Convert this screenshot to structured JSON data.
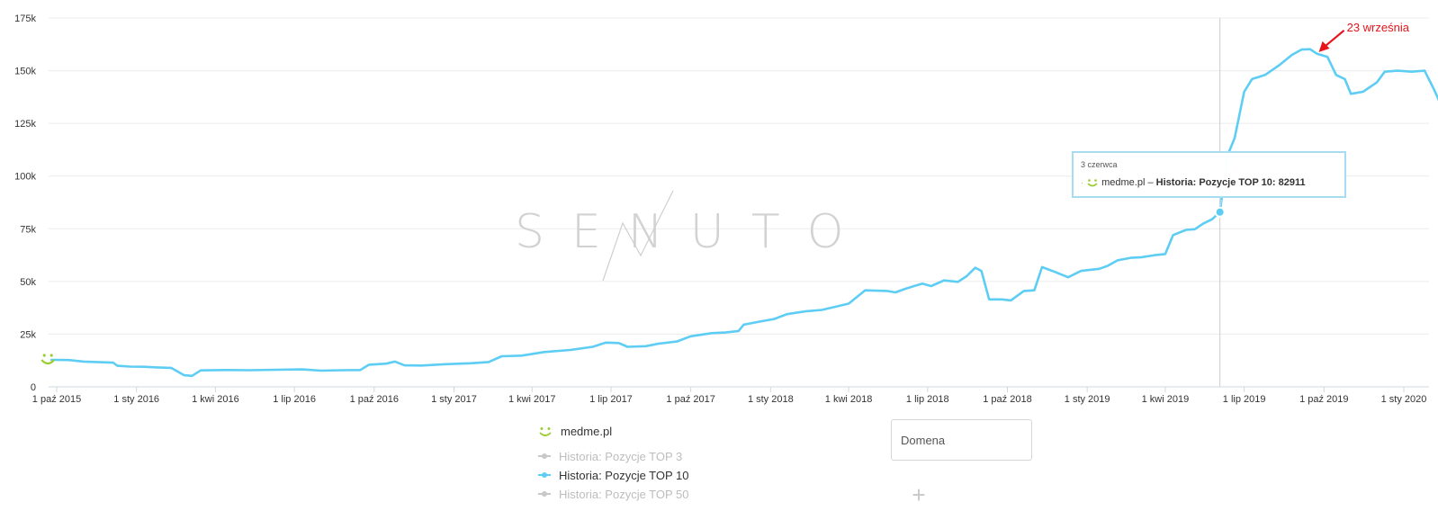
{
  "chart_data": {
    "type": "line",
    "title": "",
    "xlabel": "",
    "ylabel": "",
    "ylim": [
      0,
      175000
    ],
    "y_ticks": [
      0,
      25000,
      50000,
      75000,
      100000,
      125000,
      150000,
      175000
    ],
    "y_tick_labels": [
      "0",
      "25k",
      "50k",
      "75k",
      "100k",
      "125k",
      "150k",
      "175k"
    ],
    "x_tick_dates": [
      "2015-10-01",
      "2016-01-01",
      "2016-04-01",
      "2016-07-01",
      "2016-10-01",
      "2017-01-01",
      "2017-04-01",
      "2017-07-01",
      "2017-10-01",
      "2018-01-01",
      "2018-04-01",
      "2018-07-01",
      "2018-10-01",
      "2019-01-01",
      "2019-04-01",
      "2019-07-01",
      "2019-10-01",
      "2020-01-01"
    ],
    "x_tick_labels": [
      "1 paź 2015",
      "1 sty 2016",
      "1 kwi 2016",
      "1 lip 2016",
      "1 paź 2016",
      "1 sty 2017",
      "1 kwi 2017",
      "1 lip 2017",
      "1 paź 2017",
      "1 sty 2018",
      "1 kwi 2018",
      "1 lip 2018",
      "1 paź 2018",
      "1 sty 2019",
      "1 kwi 2019",
      "1 lip 2019",
      "1 paź 2019",
      "1 sty 2020"
    ],
    "grid": true,
    "legend_position": "bottom",
    "series": [
      {
        "name": "Historia: Pozycje TOP 10",
        "color": "#5ecdf4",
        "points": [
          [
            "2015-09-25",
            12800
          ],
          [
            "2015-10-15",
            12700
          ],
          [
            "2015-11-01",
            12000
          ],
          [
            "2015-11-20",
            11700
          ],
          [
            "2015-12-05",
            11500
          ],
          [
            "2015-12-10",
            10000
          ],
          [
            "2015-12-25",
            9600
          ],
          [
            "2016-01-10",
            9500
          ],
          [
            "2016-01-25",
            9200
          ],
          [
            "2016-02-10",
            9000
          ],
          [
            "2016-02-25",
            5500
          ],
          [
            "2016-03-05",
            5200
          ],
          [
            "2016-03-15",
            7800
          ],
          [
            "2016-04-10",
            8000
          ],
          [
            "2016-05-10",
            7900
          ],
          [
            "2016-06-10",
            8100
          ],
          [
            "2016-07-10",
            8300
          ],
          [
            "2016-08-01",
            7700
          ],
          [
            "2016-08-25",
            7900
          ],
          [
            "2016-09-15",
            8000
          ],
          [
            "2016-09-25",
            10500
          ],
          [
            "2016-10-15",
            11000
          ],
          [
            "2016-10-25",
            12000
          ],
          [
            "2016-11-05",
            10200
          ],
          [
            "2016-11-25",
            10100
          ],
          [
            "2016-12-20",
            10700
          ],
          [
            "2017-01-20",
            11200
          ],
          [
            "2017-02-10",
            11800
          ],
          [
            "2017-02-25",
            14500
          ],
          [
            "2017-03-20",
            14800
          ],
          [
            "2017-04-15",
            16500
          ],
          [
            "2017-05-15",
            17500
          ],
          [
            "2017-06-10",
            19000
          ],
          [
            "2017-06-25",
            21000
          ],
          [
            "2017-07-10",
            20800
          ],
          [
            "2017-07-20",
            19000
          ],
          [
            "2017-08-10",
            19300
          ],
          [
            "2017-08-25",
            20500
          ],
          [
            "2017-09-15",
            21500
          ],
          [
            "2017-10-01",
            24000
          ],
          [
            "2017-10-25",
            25500
          ],
          [
            "2017-11-10",
            25800
          ],
          [
            "2017-11-25",
            26500
          ],
          [
            "2017-12-01",
            29500
          ],
          [
            "2017-12-20",
            31000
          ],
          [
            "2018-01-05",
            32200
          ],
          [
            "2018-01-20",
            34500
          ],
          [
            "2018-02-10",
            35800
          ],
          [
            "2018-03-01",
            36500
          ],
          [
            "2018-03-15",
            37800
          ],
          [
            "2018-04-01",
            39500
          ],
          [
            "2018-04-20",
            45800
          ],
          [
            "2018-05-15",
            45500
          ],
          [
            "2018-05-25",
            44800
          ],
          [
            "2018-06-05",
            46500
          ],
          [
            "2018-06-25",
            49000
          ],
          [
            "2018-07-05",
            47800
          ],
          [
            "2018-07-20",
            50500
          ],
          [
            "2018-08-05",
            49800
          ],
          [
            "2018-08-15",
            52500
          ],
          [
            "2018-08-25",
            56500
          ],
          [
            "2018-09-01",
            55000
          ],
          [
            "2018-09-10",
            41500
          ],
          [
            "2018-09-25",
            41500
          ],
          [
            "2018-10-05",
            41000
          ],
          [
            "2018-10-20",
            45500
          ],
          [
            "2018-11-01",
            45800
          ],
          [
            "2018-11-10",
            56800
          ],
          [
            "2018-11-25",
            54500
          ],
          [
            "2018-12-10",
            52000
          ],
          [
            "2018-12-25",
            55000
          ],
          [
            "2019-01-15",
            56000
          ],
          [
            "2019-01-25",
            57500
          ],
          [
            "2019-02-05",
            60000
          ],
          [
            "2019-02-20",
            61200
          ],
          [
            "2019-03-05",
            61500
          ],
          [
            "2019-03-20",
            62500
          ],
          [
            "2019-04-01",
            63000
          ],
          [
            "2019-04-10",
            72000
          ],
          [
            "2019-04-25",
            74500
          ],
          [
            "2019-05-05",
            74800
          ],
          [
            "2019-05-15",
            77500
          ],
          [
            "2019-05-25",
            79500
          ],
          [
            "2019-06-03",
            82911
          ],
          [
            "2019-06-12",
            110000
          ],
          [
            "2019-06-20",
            118000
          ],
          [
            "2019-07-01",
            140000
          ],
          [
            "2019-07-10",
            146000
          ],
          [
            "2019-07-25",
            148000
          ],
          [
            "2019-08-10",
            152500
          ],
          [
            "2019-08-25",
            157500
          ],
          [
            "2019-09-05",
            160000
          ],
          [
            "2019-09-15",
            160200
          ],
          [
            "2019-09-23",
            158000
          ],
          [
            "2019-10-05",
            156500
          ],
          [
            "2019-10-15",
            148000
          ],
          [
            "2019-10-25",
            146000
          ],
          [
            "2019-11-01",
            139000
          ],
          [
            "2019-11-15",
            140000
          ],
          [
            "2019-12-01",
            144500
          ],
          [
            "2019-12-10",
            149500
          ],
          [
            "2019-12-25",
            150000
          ],
          [
            "2020-01-10",
            149500
          ],
          [
            "2020-01-25",
            150000
          ],
          [
            "2020-02-05",
            141000
          ],
          [
            "2020-02-12",
            134500
          ]
        ]
      }
    ],
    "hover_date": "2019-06-03",
    "tooltip": {
      "date_label": "3 czerwca",
      "domain": "medme.pl",
      "series_label": "Historia: Pozycje TOP 10",
      "value_label": "82911"
    },
    "annotation": {
      "text": "23 września",
      "date": "2019-09-23",
      "value": 158000,
      "color": "#e8141a"
    }
  },
  "watermark": {
    "text": "SENUTO",
    "color": "#cccccc"
  },
  "legend": {
    "domain": "medme.pl",
    "domain_icon": "smile-icon",
    "domain_icon_color": "#9acd32",
    "items": [
      {
        "label": "Historia: Pozycje TOP 3",
        "color": "#c8c8c8",
        "text_color": "#bdbdbd"
      },
      {
        "label": "Historia: Pozycje TOP 10",
        "color": "#5ecdf4",
        "text_color": "#333333"
      },
      {
        "label": "Historia: Pozycje TOP 50",
        "color": "#c8c8c8",
        "text_color": "#bdbdbd"
      }
    ]
  },
  "domain_input": {
    "placeholder": "Domena"
  },
  "add_icon": "plus-icon"
}
